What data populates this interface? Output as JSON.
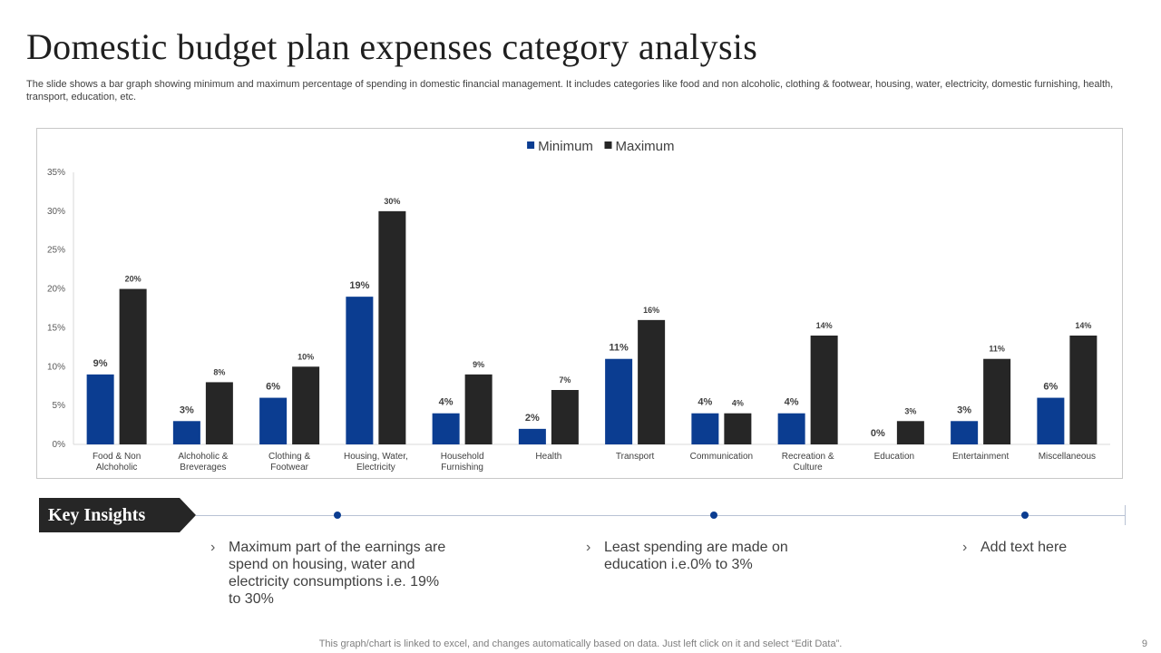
{
  "slide": {
    "title": "Domestic budget plan expenses category analysis",
    "subtitle": "The slide shows a bar graph showing minimum and maximum percentage of spending in domestic financial management. It includes categories like food and non alcoholic, clothing & footwear, housing, water, electricity,  domestic furnishing, health, transport, education, etc.",
    "footer_note": "This graph/chart is linked to excel,  and changes automatically based on data. Just left click on it and select “Edit Data”.",
    "page_number": "9"
  },
  "chart_data": {
    "type": "bar",
    "title": "",
    "xlabel": "",
    "ylabel": "",
    "ylim": [
      0,
      35
    ],
    "yticks": [
      "0%",
      "5%",
      "10%",
      "15%",
      "20%",
      "25%",
      "30%",
      "35%"
    ],
    "legend_position": "top",
    "categories": [
      [
        "Food & Non",
        "Alchoholic"
      ],
      [
        "Alchoholic &",
        "Breverages"
      ],
      [
        "Clothing &",
        "Footwear"
      ],
      [
        "Housing, Water,",
        "Electricity"
      ],
      [
        "Household",
        "Furnishing"
      ],
      [
        "Health"
      ],
      [
        "Transport"
      ],
      [
        "Communication"
      ],
      [
        "Recreation &",
        "Culture"
      ],
      [
        "Education"
      ],
      [
        "Entertainment"
      ],
      [
        "Miscellaneous"
      ]
    ],
    "series": [
      {
        "name": "Minimum",
        "color": "#0b3d91",
        "values": [
          9,
          3,
          6,
          19,
          4,
          2,
          11,
          4,
          4,
          0,
          3,
          6
        ],
        "labels": [
          "9%",
          "3%",
          "6%",
          "19%",
          "4%",
          "2%",
          "11%",
          "4%",
          "4%",
          "0%",
          "3%",
          "6%"
        ]
      },
      {
        "name": "Maximum",
        "color": "#262626",
        "values": [
          20,
          8,
          10,
          30,
          9,
          7,
          16,
          4,
          14,
          3,
          11,
          14
        ],
        "labels": [
          "20%",
          "8%",
          "10%",
          "30%",
          "9%",
          "7%",
          "16%",
          "4%",
          "14%",
          "3%",
          "11%",
          "14%"
        ]
      }
    ]
  },
  "insights": {
    "tag": "Key Insights",
    "chevron": "›",
    "items": [
      "Maximum part of the earnings are spend on housing, water and electricity consumptions i.e. 19% to 30%",
      "Least spending are made on education i.e.0% to 3%",
      "Add text here"
    ]
  }
}
